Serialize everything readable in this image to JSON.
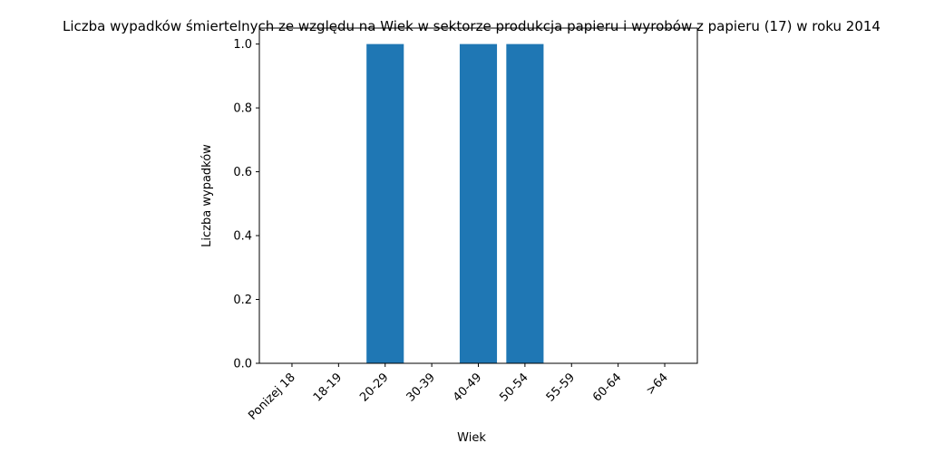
{
  "chart_data": {
    "type": "bar",
    "title": "Liczba wypadków śmiertelnych ze względu na Wiek w sektorze produkcja papieru i wyrobów z papieru  (17)   w roku 2014",
    "xlabel": "Wiek",
    "ylabel": "Liczba wypadków",
    "categories": [
      "Ponizej 18",
      "18-19",
      "20-29",
      "30-39",
      "40-49",
      "50-54",
      "55-59",
      "60-64",
      ">64"
    ],
    "values": [
      0,
      0,
      1,
      0,
      1,
      1,
      0,
      0,
      0
    ],
    "ylim": [
      0,
      1.05
    ],
    "yticks": [
      "0.0",
      "0.2",
      "0.4",
      "0.6",
      "0.8",
      "1.0"
    ],
    "grid": false,
    "bar_color": "#1f77b4"
  }
}
